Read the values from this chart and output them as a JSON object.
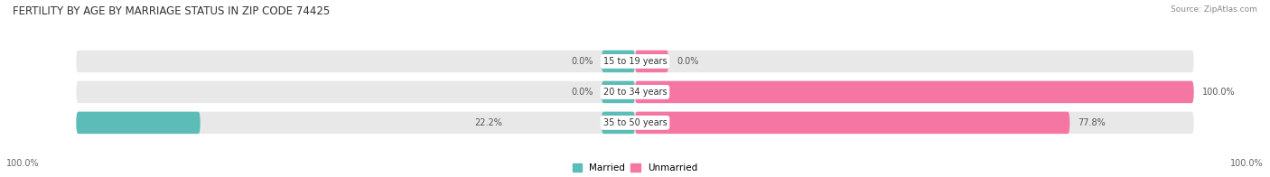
{
  "title": "FERTILITY BY AGE BY MARRIAGE STATUS IN ZIP CODE 74425",
  "source": "Source: ZipAtlas.com",
  "categories": [
    "15 to 19 years",
    "20 to 34 years",
    "35 to 50 years"
  ],
  "married_values": [
    0.0,
    0.0,
    22.2
  ],
  "unmarried_values": [
    0.0,
    100.0,
    77.8
  ],
  "married_color": "#5bbcb8",
  "unmarried_color": "#f576a3",
  "bar_bg_color": "#e8e8e8",
  "figsize": [
    14.06,
    1.96
  ],
  "title_fontsize": 8.5,
  "label_fontsize": 7,
  "category_fontsize": 7,
  "legend_fontsize": 7.5,
  "source_fontsize": 6.5,
  "axis_label_left": "100.0%",
  "axis_label_right": "100.0%"
}
